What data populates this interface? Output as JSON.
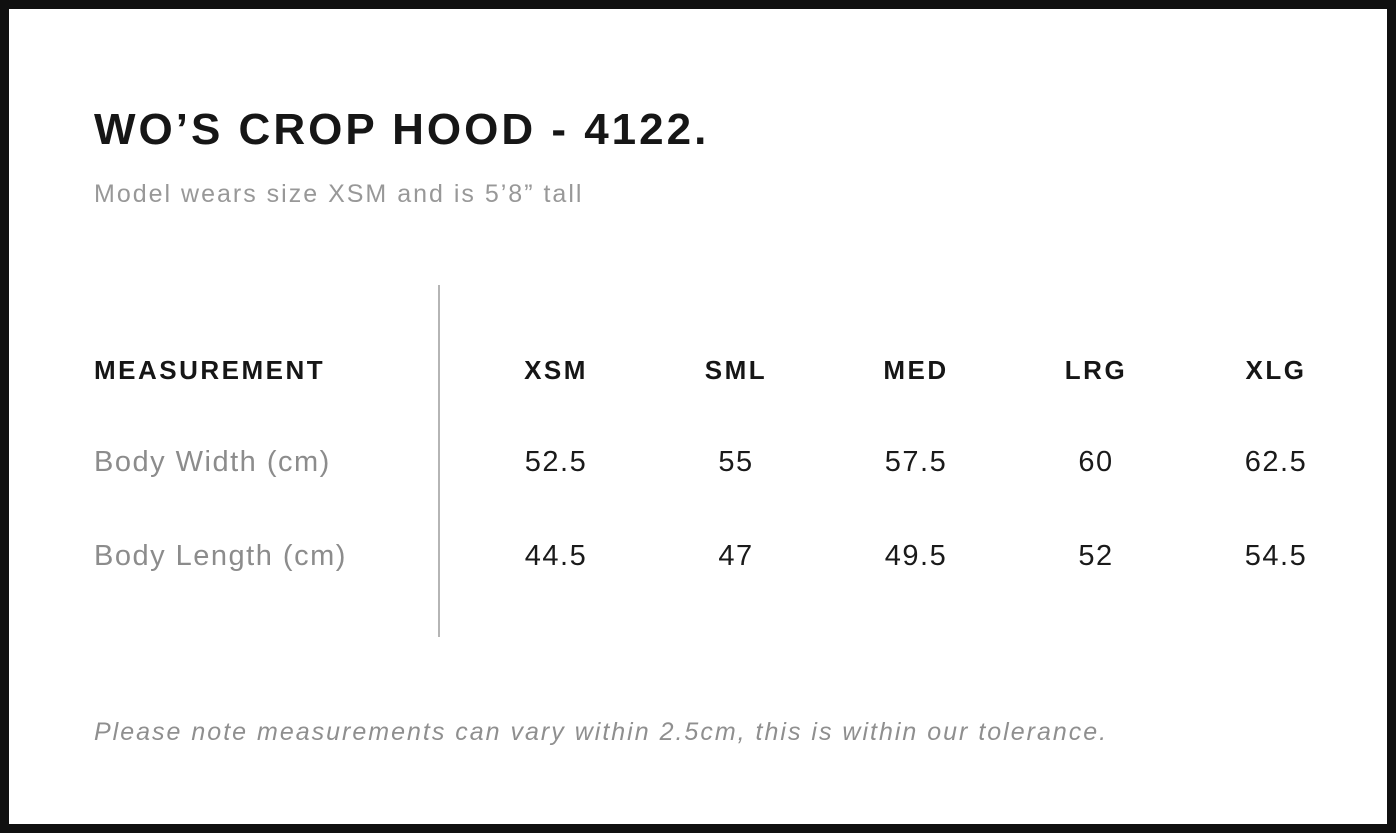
{
  "header": {
    "title": "WO’S CROP HOOD - 4122.",
    "model_note": "Model wears size XSM and is 5’8” tall"
  },
  "table": {
    "measurement_header": "MEASUREMENT",
    "size_headers": [
      "XSM",
      "SML",
      "MED",
      "LRG",
      "XLG"
    ],
    "rows": [
      {
        "label": "Body Width (cm)",
        "values": [
          "52.5",
          "55",
          "57.5",
          "60",
          "62.5"
        ]
      },
      {
        "label": "Body Length (cm)",
        "values": [
          "44.5",
          "47",
          "49.5",
          "52",
          "54.5"
        ]
      }
    ]
  },
  "footnote": {
    "text": "Please note measurements can vary within 2.5cm, this is within our tolerance."
  },
  "colors": {
    "frame_border": "#101010",
    "text_primary": "#161616",
    "text_muted": "#8c8c8c",
    "divider": "#b5b5b5"
  },
  "chart_data": {
    "type": "table",
    "title": "WO’S CROP HOOD - 4122.",
    "subtitle": "Model wears size XSM and is 5’8” tall",
    "columns": [
      "MEASUREMENT",
      "XSM",
      "SML",
      "MED",
      "LRG",
      "XLG"
    ],
    "rows": [
      [
        "Body Width (cm)",
        52.5,
        55,
        57.5,
        60,
        62.5
      ],
      [
        "Body Length (cm)",
        44.5,
        47,
        49.5,
        52,
        54.5
      ]
    ],
    "note": "Please note measurements can vary within 2.5cm, this is within our tolerance."
  }
}
